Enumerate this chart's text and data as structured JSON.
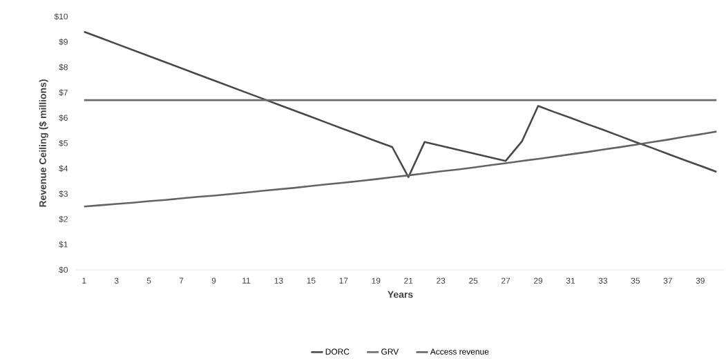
{
  "chart_data": {
    "type": "line",
    "xlabel": "Years",
    "ylabel": "Revenue Ceiling ($ millions)",
    "categories": [
      "1",
      null,
      "3",
      null,
      "5",
      null,
      "7",
      null,
      "9",
      null,
      "11",
      null,
      "13",
      null,
      "15",
      null,
      "17",
      null,
      "19",
      null,
      "21",
      null,
      "23",
      null,
      "25",
      null,
      "27",
      null,
      "29",
      null,
      "31",
      null,
      "33",
      null,
      "35",
      null,
      "37",
      null,
      "39",
      null
    ],
    "series": [
      {
        "name": "DORC",
        "color": "#484848",
        "values": [
          9.4,
          9.16,
          8.92,
          8.68,
          8.44,
          8.2,
          7.96,
          7.72,
          7.48,
          7.24,
          7.0,
          6.76,
          6.52,
          6.28,
          6.04,
          5.8,
          5.56,
          5.32,
          5.08,
          4.85,
          3.66,
          5.05,
          4.9,
          4.75,
          4.6,
          4.45,
          4.3,
          5.07,
          6.47,
          6.23,
          6.0,
          5.76,
          5.53,
          5.29,
          5.05,
          4.82,
          4.58,
          4.34,
          4.11,
          3.87
        ]
      },
      {
        "name": "GRV",
        "color": "#6a6a6a",
        "values": [
          6.7,
          6.7,
          6.7,
          6.7,
          6.7,
          6.7,
          6.7,
          6.7,
          6.7,
          6.7,
          6.7,
          6.7,
          6.7,
          6.7,
          6.7,
          6.7,
          6.7,
          6.7,
          6.7,
          6.7,
          6.7,
          6.7,
          6.7,
          6.7,
          6.7,
          6.7,
          6.7,
          6.7,
          6.7,
          6.7,
          6.7,
          6.7,
          6.7,
          6.7,
          6.7,
          6.7,
          6.7,
          6.7,
          6.7,
          6.7
        ]
      },
      {
        "name": "Access revenue",
        "color": "#636363",
        "values": [
          2.5,
          2.55,
          2.6,
          2.65,
          2.71,
          2.76,
          2.82,
          2.88,
          2.93,
          2.99,
          3.05,
          3.12,
          3.18,
          3.24,
          3.31,
          3.38,
          3.44,
          3.51,
          3.58,
          3.66,
          3.73,
          3.81,
          3.89,
          3.96,
          4.04,
          4.13,
          4.21,
          4.3,
          4.38,
          4.47,
          4.56,
          4.65,
          4.75,
          4.84,
          4.94,
          5.04,
          5.14,
          5.25,
          5.35,
          5.46
        ]
      }
    ],
    "ylim": [
      0,
      10
    ],
    "yticks": [
      {
        "value": 0,
        "label": "$0"
      },
      {
        "value": 1,
        "label": "$1"
      },
      {
        "value": 2,
        "label": "$2"
      },
      {
        "value": 3,
        "label": "$3"
      },
      {
        "value": 4,
        "label": "$4"
      },
      {
        "value": 5,
        "label": "$5"
      },
      {
        "value": 6,
        "label": "$6"
      },
      {
        "value": 7,
        "label": "$7"
      },
      {
        "value": 8,
        "label": "$8"
      },
      {
        "value": 9,
        "label": "$9"
      },
      {
        "value": 10,
        "label": "$10"
      }
    ],
    "grid": false,
    "legend": "bottom"
  }
}
